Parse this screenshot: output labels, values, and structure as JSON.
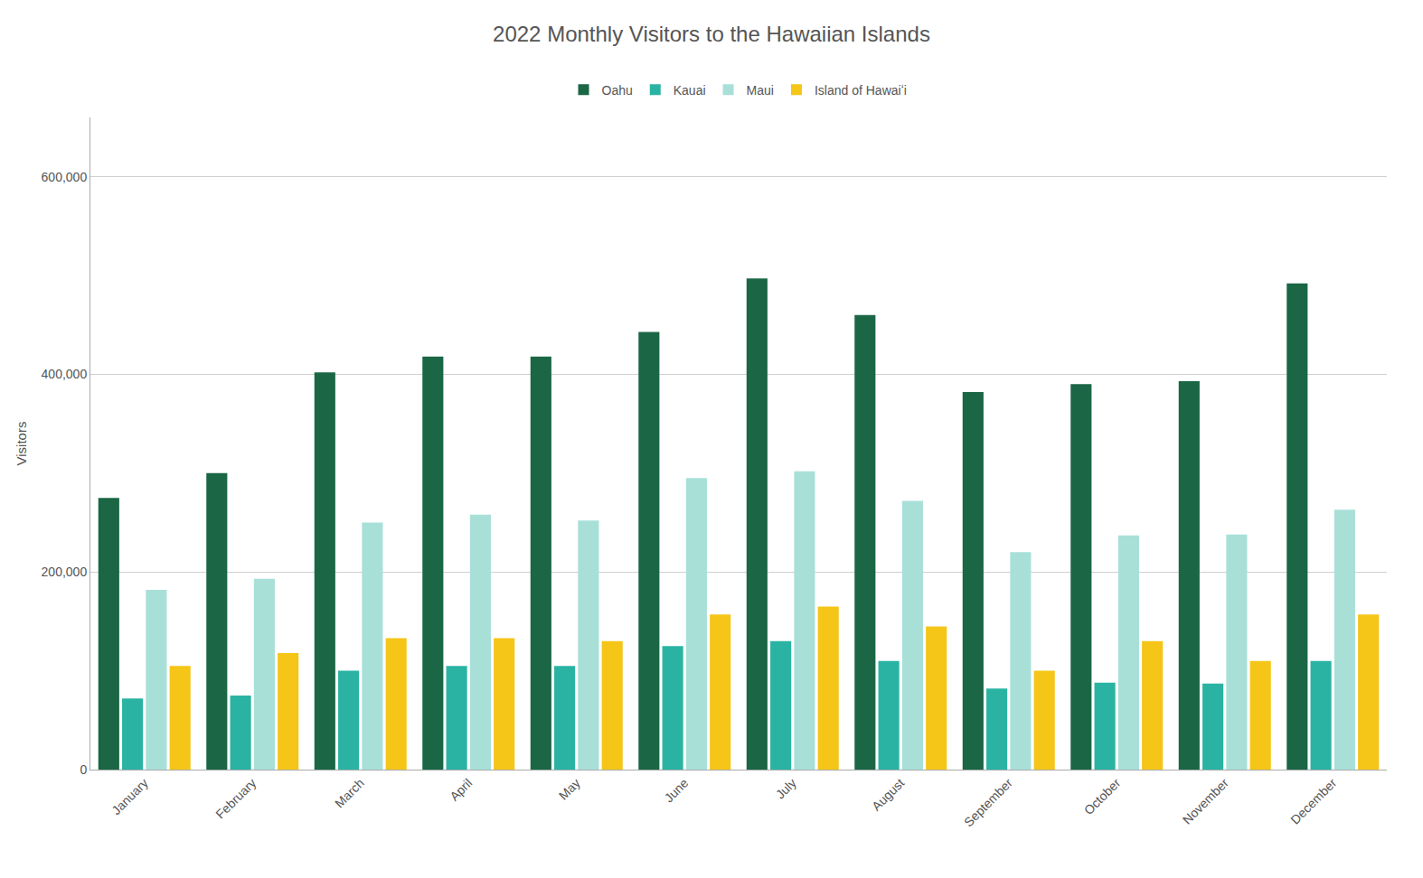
{
  "chart_data": {
    "type": "bar",
    "title": "2022 Monthly Visitors to the Hawaiian Islands",
    "ylabel": "Visitors",
    "categories": [
      "January",
      "February",
      "March",
      "April",
      "May",
      "June",
      "July",
      "August",
      "September",
      "October",
      "November",
      "December"
    ],
    "series": [
      {
        "name": "Oahu",
        "color": "#1a6645",
        "values": [
          275000,
          300000,
          402000,
          418000,
          418000,
          443000,
          497000,
          460000,
          382000,
          390000,
          393000,
          492000
        ]
      },
      {
        "name": "Kauai",
        "color": "#2ab3a3",
        "values": [
          72000,
          75000,
          100000,
          105000,
          105000,
          125000,
          130000,
          110000,
          82000,
          88000,
          87000,
          110000
        ]
      },
      {
        "name": "Maui",
        "color": "#a8e0d8",
        "values": [
          182000,
          193000,
          250000,
          258000,
          252000,
          295000,
          302000,
          272000,
          220000,
          237000,
          238000,
          263000
        ]
      },
      {
        "name": "Island of Hawaiʻi",
        "color": "#f5c518",
        "values": [
          105000,
          118000,
          133000,
          133000,
          130000,
          157000,
          165000,
          145000,
          100000,
          130000,
          110000,
          157000
        ]
      }
    ],
    "ylim": [
      0,
      660000
    ],
    "yticks": [
      0,
      {
        "value": 200000,
        "label": "200,000"
      },
      {
        "value": 400000,
        "label": "400,000"
      },
      {
        "value": 600000,
        "label": "600,000"
      }
    ],
    "grid": true,
    "legend": "top"
  }
}
